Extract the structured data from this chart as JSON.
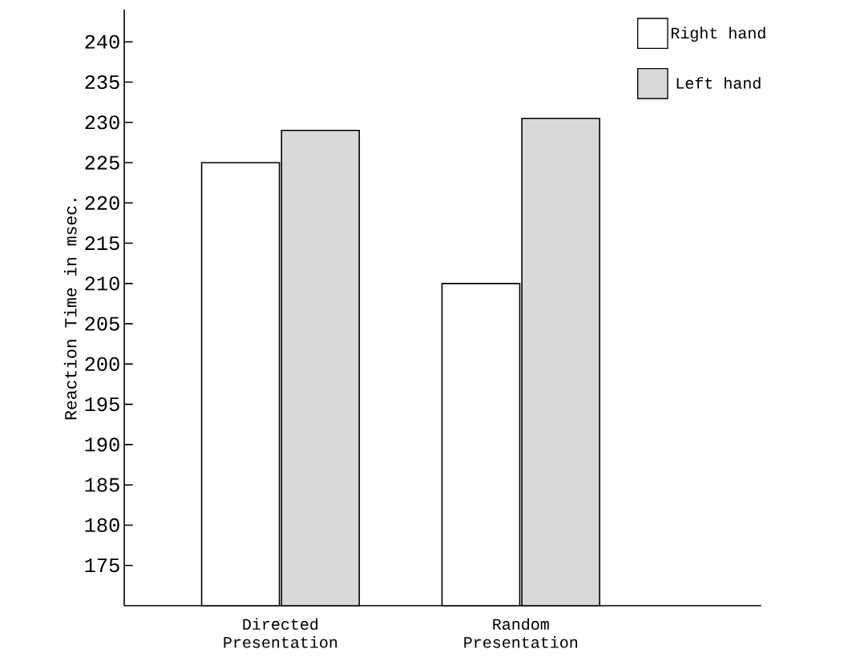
{
  "chart_data": {
    "type": "bar",
    "ylabel": "Reaction Time in msec.",
    "categories": [
      "Directed Presentation",
      "Random Presentation"
    ],
    "series": [
      {
        "name": "Right hand",
        "color": "#ffffff",
        "values": [
          225,
          210
        ]
      },
      {
        "name": "Left hand",
        "color": "#d9d9d9",
        "values": [
          229,
          230.5
        ]
      }
    ],
    "ylim": [
      170,
      244
    ],
    "yticks": [
      175,
      180,
      185,
      190,
      195,
      200,
      205,
      210,
      215,
      220,
      225,
      230,
      235,
      240
    ],
    "grid": false,
    "legend": "top right"
  }
}
